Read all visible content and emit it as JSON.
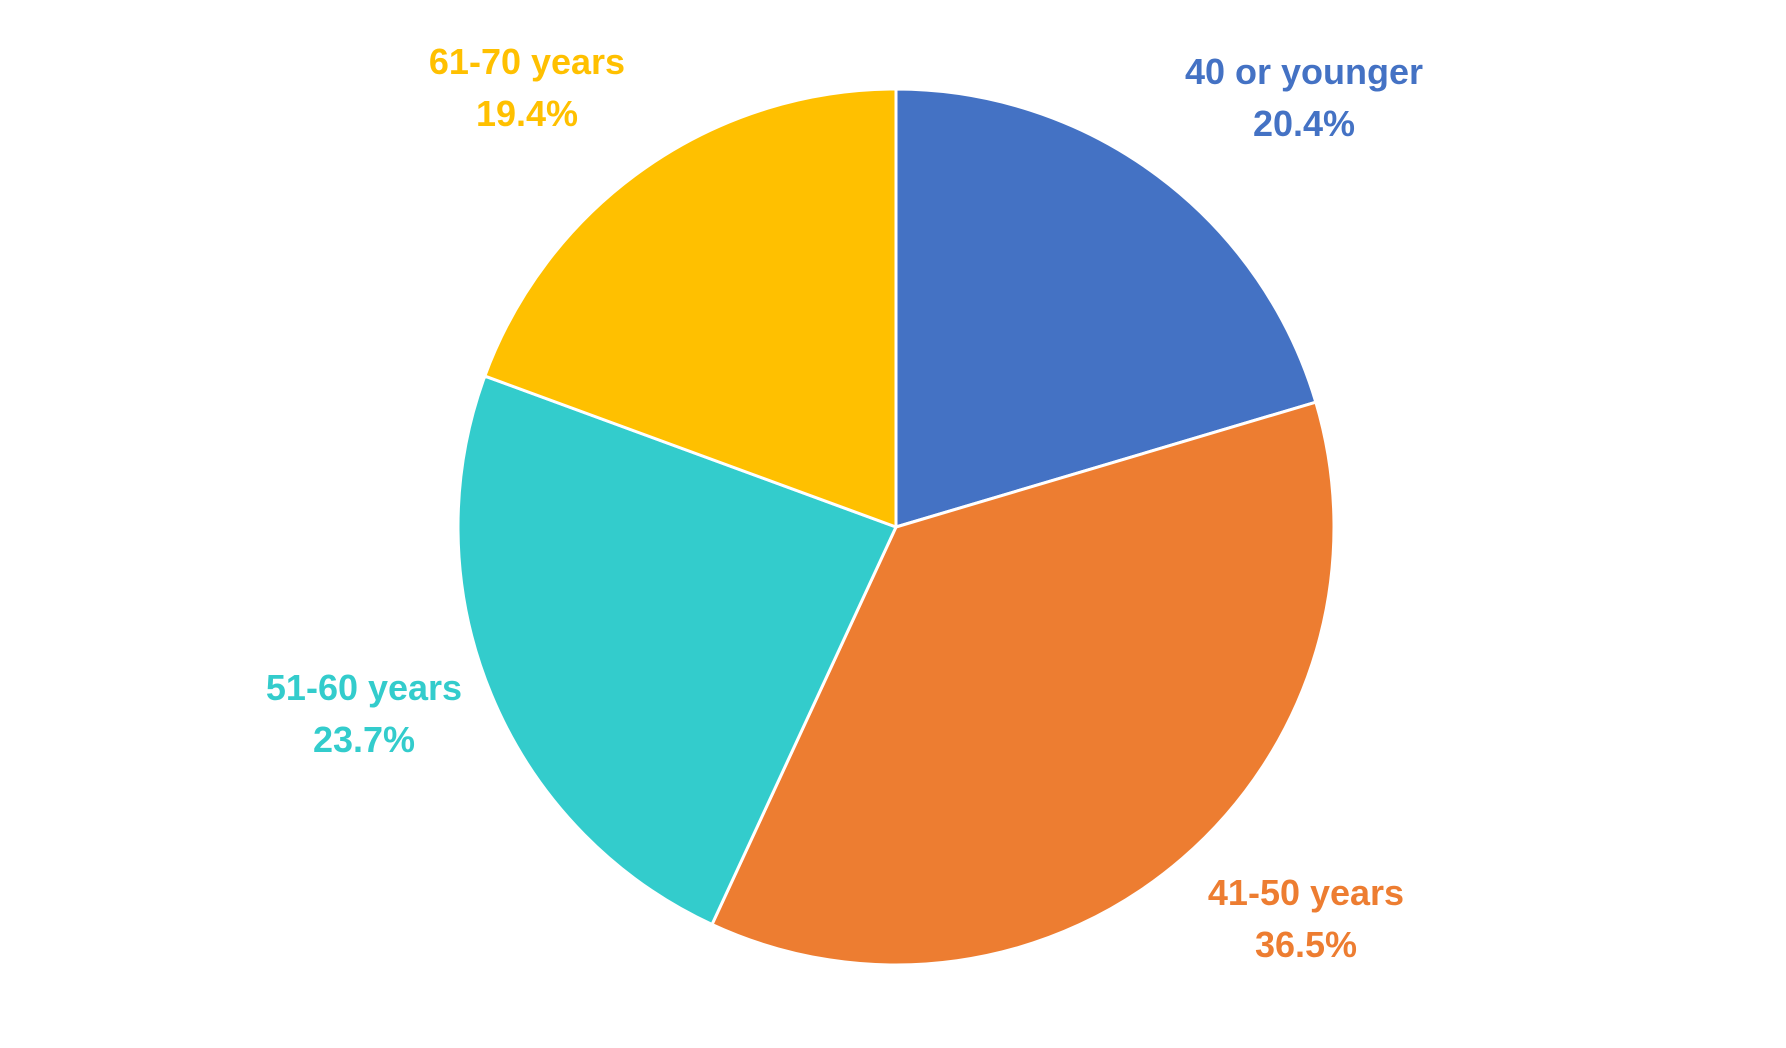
{
  "chart_data": {
    "type": "pie",
    "title": "",
    "slices": [
      {
        "label": "40 or younger",
        "value": 20.4,
        "value_label": "20.4%",
        "color": "#4472C4"
      },
      {
        "label": "41-50 years",
        "value": 36.5,
        "value_label": "36.5%",
        "color": "#ED7D31"
      },
      {
        "label": "51-60 years",
        "value": 23.7,
        "value_label": "23.7%",
        "color": "#33CCCC"
      },
      {
        "label": "61-70 years",
        "value": 19.4,
        "value_label": "19.4%",
        "color": "#FFC000"
      }
    ],
    "start_angle": "12 o'clock",
    "direction": "clockwise",
    "legend": "none",
    "data_labels": "outside"
  }
}
